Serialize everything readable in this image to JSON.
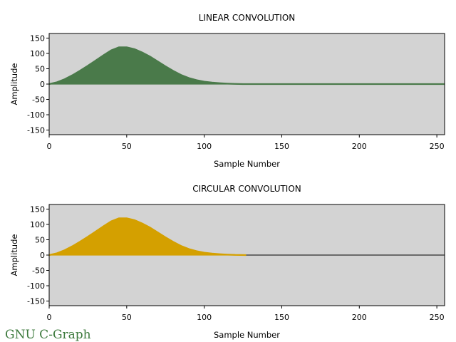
{
  "brand": {
    "text": "GNU C-Graph",
    "color": "#3d7a3d"
  },
  "chart_data": [
    {
      "type": "area",
      "title": "LINEAR CONVOLUTION",
      "xlabel": "Sample Number",
      "ylabel": "Amplitude",
      "xlim": [
        0,
        255
      ],
      "ylim": [
        -165,
        165
      ],
      "xticks": [
        0,
        50,
        100,
        150,
        200,
        250
      ],
      "yticks": [
        150,
        100,
        50,
        0,
        -50,
        -100,
        -150
      ],
      "background": "#d3d3d3",
      "series": [
        {
          "color": "#4a7a4a",
          "x": [
            0,
            5,
            10,
            15,
            20,
            25,
            30,
            35,
            40,
            45,
            50,
            55,
            60,
            65,
            70,
            75,
            80,
            85,
            90,
            95,
            100,
            105,
            110,
            115,
            120,
            125,
            130,
            140,
            160,
            200,
            255
          ],
          "y": [
            0,
            6,
            16,
            29,
            44,
            60,
            77,
            94,
            110,
            120,
            120,
            114,
            103,
            90,
            74,
            58,
            43,
            30,
            20,
            13,
            8,
            5,
            3,
            1.5,
            0.5,
            0,
            0,
            0,
            0,
            0,
            0
          ]
        }
      ]
    },
    {
      "type": "area",
      "title": "CIRCULAR CONVOLUTION",
      "xlabel": "Sample Number",
      "ylabel": "Amplitude",
      "xlim": [
        0,
        255
      ],
      "ylim": [
        -165,
        165
      ],
      "xticks": [
        0,
        50,
        100,
        150,
        200,
        250
      ],
      "yticks": [
        150,
        100,
        50,
        0,
        -50,
        -100,
        -150
      ],
      "background": "#d3d3d3",
      "series": [
        {
          "color": "#d4a000",
          "x": [
            0,
            5,
            10,
            15,
            20,
            25,
            30,
            35,
            40,
            45,
            50,
            55,
            60,
            65,
            70,
            75,
            80,
            85,
            90,
            95,
            100,
            105,
            110,
            115,
            120,
            127
          ],
          "y": [
            0,
            6,
            16,
            29,
            44,
            60,
            77,
            94,
            110,
            120,
            120,
            114,
            103,
            90,
            74,
            58,
            43,
            30,
            20,
            13,
            8,
            5,
            3,
            1.5,
            0.5,
            0
          ]
        }
      ]
    }
  ]
}
